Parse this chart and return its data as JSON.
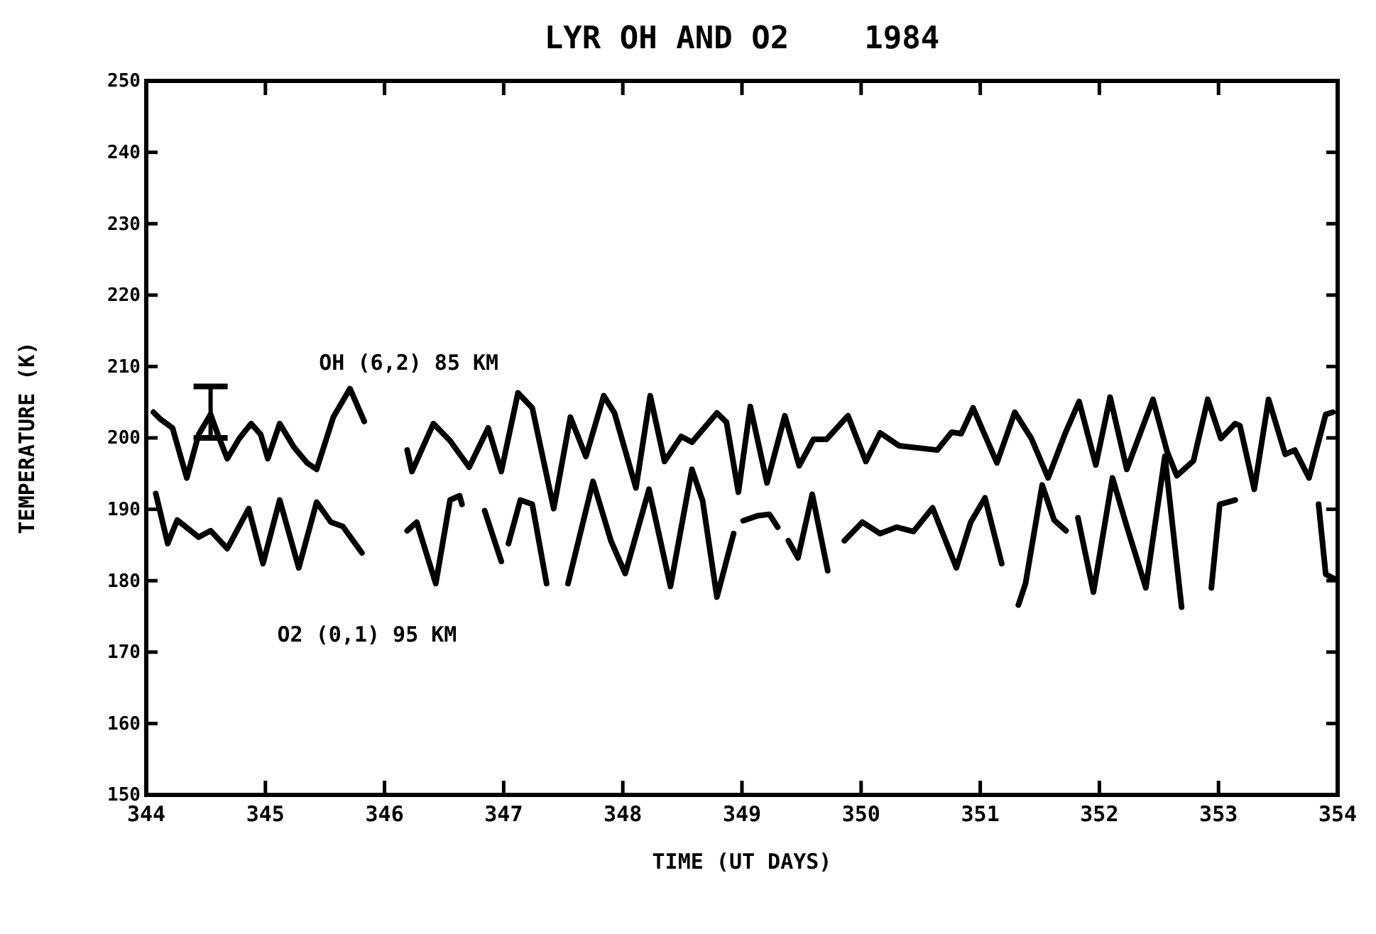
{
  "chart_data": {
    "type": "line",
    "title": "LYR OH AND O2    1984",
    "xlabel": "TIME (UT DAYS)",
    "ylabel": "TEMPERATURE (K)",
    "xlim": [
      344,
      354
    ],
    "xticks": [
      344,
      345,
      346,
      347,
      348,
      349,
      350,
      351,
      352,
      353,
      354
    ],
    "ylim": [
      150,
      250
    ],
    "yticks": [
      150,
      160,
      170,
      180,
      190,
      200,
      210,
      220,
      230,
      240,
      250
    ],
    "grid": false,
    "marker": "none",
    "line_style": "solid",
    "series": [
      {
        "name": "OH (6,2) 85 KM",
        "color": "#000000",
        "x": [
          344.06,
          344.12,
          344.22,
          344.34,
          344.44,
          344.54,
          344.6,
          344.68,
          344.78,
          344.88,
          344.96,
          345.02,
          345.12,
          345.24,
          345.35,
          345.43,
          345.57,
          345.71,
          345.83,
          345.95,
          346.19,
          346.23,
          346.41,
          346.55,
          346.71,
          346.87,
          346.98,
          347.12,
          347.24,
          347.42,
          347.56,
          347.69,
          347.84,
          347.93,
          348.11,
          348.23,
          348.35,
          348.49,
          348.58,
          348.79,
          348.87,
          348.97,
          349.07,
          349.21,
          349.36,
          349.48,
          349.6,
          349.71,
          349.89,
          350.04,
          350.16,
          350.32,
          350.64,
          350.76,
          350.84,
          350.94,
          351.14,
          351.29,
          351.43,
          351.57,
          351.71,
          351.83,
          351.97,
          352.09,
          352.23,
          352.45,
          352.57,
          352.65,
          352.79,
          352.91,
          353.02,
          353.14,
          353.18,
          353.3,
          353.42,
          353.56,
          353.64,
          353.76,
          353.9,
          353.96
        ],
        "values": [
          203.6,
          202.6,
          201.4,
          194.4,
          200.5,
          203.3,
          200.5,
          197.1,
          199.9,
          202.0,
          200.5,
          197.1,
          202.0,
          198.7,
          196.5,
          195.6,
          202.9,
          206.9,
          202.3,
          null,
          198.3,
          195.3,
          202.0,
          199.6,
          195.9,
          201.4,
          195.3,
          206.3,
          204.2,
          190.1,
          202.9,
          197.4,
          205.9,
          203.5,
          193.0,
          205.9,
          196.7,
          200.2,
          199.4,
          203.5,
          202.2,
          192.4,
          204.4,
          193.7,
          203.1,
          196.1,
          199.8,
          199.8,
          203.1,
          196.7,
          200.7,
          198.9,
          198.3,
          200.8,
          200.6,
          204.2,
          196.5,
          203.6,
          199.9,
          194.4,
          200.5,
          205.1,
          196.2,
          205.7,
          195.6,
          205.4,
          198.0,
          194.7,
          196.8,
          205.4,
          199.9,
          202.0,
          201.7,
          192.8,
          205.4,
          197.7,
          198.3,
          194.4,
          203.3,
          203.6
        ],
        "errors": [
          null,
          null,
          null,
          null,
          null,
          [
            200.0,
            207.2
          ],
          null,
          null,
          null,
          null,
          null,
          null,
          null,
          null,
          null,
          null,
          null,
          null,
          null,
          null,
          null,
          null,
          null,
          null,
          null,
          null,
          null,
          null,
          null,
          null,
          null,
          null,
          null,
          null,
          null,
          null,
          null,
          null,
          null,
          null,
          null,
          null,
          null,
          null,
          null,
          null,
          null,
          null,
          null,
          null,
          null,
          null,
          null,
          null,
          null,
          null,
          null,
          null,
          null,
          null,
          null,
          null,
          null,
          null,
          null,
          null,
          null,
          null,
          null,
          null,
          null,
          null,
          null,
          null,
          null,
          null,
          null,
          null,
          null,
          null
        ]
      },
      {
        "name": "O2 (0,1) 95 KM",
        "color": "#000000",
        "x": [
          344.08,
          344.18,
          344.26,
          344.44,
          344.54,
          344.68,
          344.86,
          344.98,
          345.12,
          345.28,
          345.43,
          345.55,
          345.65,
          345.81,
          345.95,
          346.19,
          346.27,
          346.43,
          346.55,
          346.63,
          346.65,
          346.75,
          346.84,
          346.98,
          347.01,
          347.04,
          347.14,
          347.24,
          347.36,
          347.45,
          347.54,
          347.75,
          347.9,
          348.02,
          348.22,
          348.4,
          348.58,
          348.67,
          348.79,
          348.93,
          348.97,
          349.01,
          349.13,
          349.23,
          349.3,
          349.34,
          349.39,
          349.47,
          349.59,
          349.72,
          349.79,
          349.86,
          350.01,
          350.16,
          350.3,
          350.44,
          350.6,
          350.8,
          350.92,
          351.04,
          351.18,
          351.25,
          351.32,
          351.38,
          351.52,
          351.62,
          351.72,
          351.77,
          351.82,
          351.95,
          352.11,
          352.23,
          352.39,
          352.55,
          352.69,
          352.8,
          352.94,
          353.01,
          353.14,
          353.5,
          353.84,
          353.9,
          353.98
        ],
        "values": [
          192.2,
          185.2,
          188.5,
          186.1,
          187.0,
          184.5,
          190.1,
          182.4,
          191.3,
          181.8,
          191.0,
          188.2,
          187.6,
          183.9,
          null,
          187.0,
          188.2,
          179.6,
          191.3,
          191.9,
          190.7,
          null,
          189.8,
          182.7,
          null,
          185.2,
          191.3,
          190.7,
          179.6,
          null,
          179.6,
          193.9,
          185.6,
          181.0,
          192.8,
          179.2,
          195.6,
          191.2,
          177.7,
          186.6,
          null,
          188.4,
          189.1,
          189.3,
          187.5,
          null,
          185.6,
          183.2,
          192.1,
          181.4,
          null,
          185.6,
          188.2,
          186.6,
          187.5,
          186.9,
          190.2,
          181.8,
          188.2,
          191.6,
          182.4,
          null,
          176.6,
          179.6,
          193.4,
          188.5,
          187.0,
          null,
          188.8,
          178.4,
          194.4,
          187.6,
          179.0,
          197.4,
          176.3,
          null,
          179.0,
          190.7,
          191.3,
          null,
          190.7,
          180.9,
          180.2
        ]
      }
    ]
  }
}
